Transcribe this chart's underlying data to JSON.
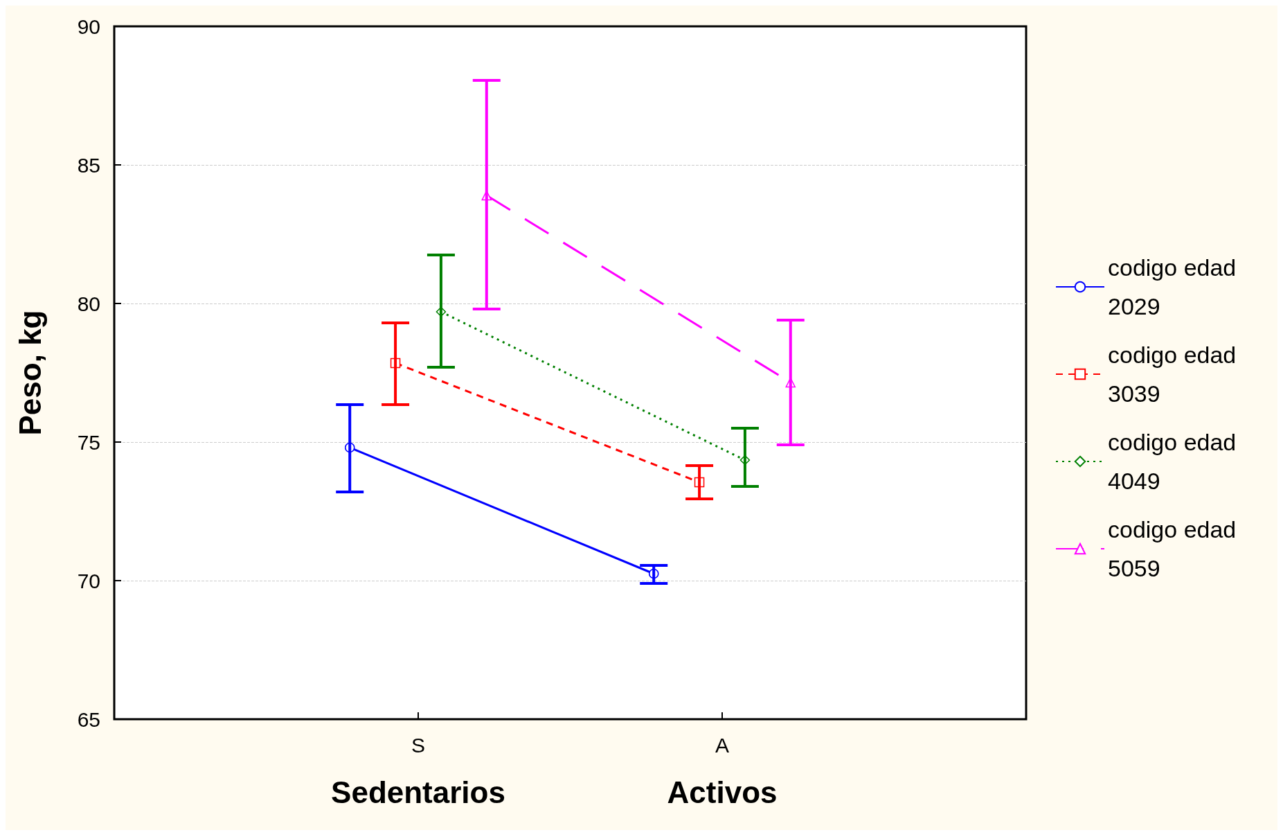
{
  "chart_data": {
    "type": "line",
    "ylabel": "Peso, kg",
    "categories": [
      "S",
      "A"
    ],
    "annotations": [
      "Sedentarios",
      "Activos"
    ],
    "ylim": [
      65,
      90
    ],
    "yticks": [
      65,
      70,
      75,
      80,
      85,
      90
    ],
    "grid": true,
    "legend": "right",
    "series": [
      {
        "name": "codigo edad 2029",
        "color": "#0000ff",
        "marker": "circle",
        "line_style": "solid",
        "values": [
          74.8,
          70.25
        ],
        "errors": [
          [
            73.2,
            76.35
          ],
          [
            69.9,
            70.55
          ]
        ]
      },
      {
        "name": "codigo edad 3039",
        "color": "#ff0000",
        "marker": "square",
        "line_style": "dashed",
        "values": [
          77.85,
          73.55
        ],
        "errors": [
          [
            76.35,
            79.3
          ],
          [
            72.95,
            74.15
          ]
        ]
      },
      {
        "name": "codigo edad 4049",
        "color": "#008000",
        "marker": "diamond",
        "line_style": "dotted",
        "values": [
          79.7,
          74.35
        ],
        "errors": [
          [
            77.7,
            81.75
          ],
          [
            73.4,
            75.5
          ]
        ]
      },
      {
        "name": "codigo edad 5059",
        "color": "#ff00ff",
        "marker": "triangle",
        "line_style": "longdash",
        "values": [
          83.9,
          77.15
        ],
        "errors": [
          [
            79.8,
            88.05
          ],
          [
            74.9,
            79.4
          ]
        ]
      }
    ]
  }
}
